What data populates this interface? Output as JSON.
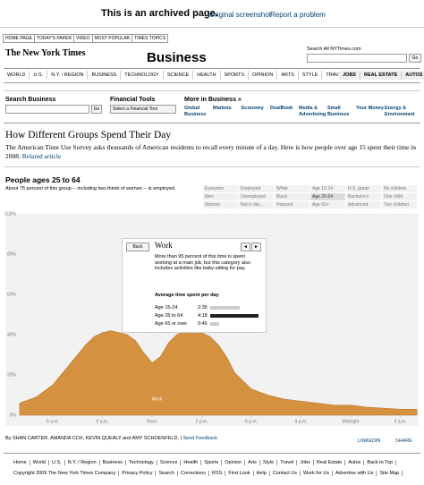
{
  "banner": {
    "text": "This is an archived page.",
    "links": [
      "Original screenshot",
      "Report a problem"
    ]
  },
  "tabs": [
    "HOME PAGE",
    "TODAY'S PAPER",
    "VIDEO",
    "MOST POPULAR",
    "TIMES TOPICS"
  ],
  "masthead": {
    "logo": "The New York Times",
    "section": "Business",
    "search_label": "Search All NYTimes.com",
    "search_button": "Go"
  },
  "nav": [
    "WORLD",
    "U.S.",
    "N.Y. / REGION",
    "BUSINESS",
    "TECHNOLOGY",
    "SCIENCE",
    "HEALTH",
    "SPORTS",
    "OPINION",
    "ARTS",
    "STYLE",
    "TRAVEL"
  ],
  "nav_right": [
    "JOBS",
    "REAL ESTATE",
    "AUTOS"
  ],
  "toolbar": {
    "search_label": "Search Business",
    "search_button": "Go",
    "tools_label": "Financial Tools",
    "tools_select": "Select a Financial Tool",
    "more_label": "More in Business »",
    "more_links": [
      "Global Business",
      "Markets",
      "Economy",
      "DealBook",
      "Media & Advertising",
      "Small Business",
      "Your Money",
      "Energy & Environment"
    ]
  },
  "article": {
    "title": "How Different Groups Spend Their Day",
    "intro": "The American Time Use Survey asks thousands of American residents to recall every minute of a day. Here is how people over age 15 spent their time in 2008.",
    "related": "Related article"
  },
  "graphic": {
    "heading": "People ages 25 to 64",
    "description": "About 75 percent of this group -- including two-thirds of women -- is employed.",
    "filters": [
      [
        "Everyone",
        "Employed",
        "White",
        "Age 15-24",
        "H.S. grade",
        "No children"
      ],
      [
        "Men",
        "Unemployed",
        "Black",
        "Age 25-64",
        "Bachelor's",
        "One child"
      ],
      [
        "Women",
        "Not in lab...",
        "Hispanic",
        "Age 65+",
        "Advanced",
        "Two children"
      ]
    ]
  },
  "chart_data": {
    "type": "area",
    "x": [
      4,
      5,
      6,
      7,
      7.5,
      8,
      8.5,
      9,
      9.5,
      10,
      10.5,
      11,
      11.5,
      12,
      12.5,
      13,
      13.5,
      14,
      14.5,
      15,
      15.5,
      16,
      16.5,
      17,
      18,
      19,
      20,
      21,
      22,
      23,
      24,
      25,
      26,
      27,
      28
    ],
    "series": [
      {
        "name": "Work",
        "color": "#d4913f",
        "values": [
          6,
          9,
          15,
          25,
          30,
          35,
          39,
          41,
          42,
          41,
          40,
          37,
          31,
          26,
          29,
          36,
          40,
          42,
          42,
          41,
          39,
          35,
          29,
          21,
          13,
          10,
          8,
          7,
          6,
          5,
          5,
          4,
          3.5,
          3,
          3
        ]
      }
    ],
    "xlim": [
      4,
      28
    ],
    "xticks": [
      {
        "value": 6,
        "label": "6 a.m."
      },
      {
        "value": 9,
        "label": "9 a.m."
      },
      {
        "value": 12,
        "label": "Noon"
      },
      {
        "value": 15,
        "label": "3 p.m."
      },
      {
        "value": 18,
        "label": "6 p.m."
      },
      {
        "value": 21,
        "label": "9 p.m."
      },
      {
        "value": 24,
        "label": "Midnight"
      },
      {
        "value": 27,
        "label": "3 a.m."
      }
    ],
    "ylim": [
      0,
      100
    ],
    "yticks": [
      {
        "value": 0,
        "label": "0%"
      },
      {
        "value": 20,
        "label": "20%"
      },
      {
        "value": 40,
        "label": "40%"
      },
      {
        "value": 60,
        "label": "60%"
      },
      {
        "value": 80,
        "label": "80%"
      },
      {
        "value": 100,
        "label": "100%"
      }
    ],
    "grid": true
  },
  "detail": {
    "back": "Back",
    "title": "Work",
    "text": "More than 95 percent of this time is spent working at a main job, but this category also includes activities like baby-sitting for pay.",
    "subheading": "Average time spent per day",
    "rows": [
      {
        "label": "Age 15-24",
        "value": 155,
        "value_label": "2:35"
      },
      {
        "label": "Age 25 to 64",
        "value": 258,
        "value_label": "4:18"
      },
      {
        "label": "Age 65 or over",
        "value": 46,
        "value_label": "0:46"
      }
    ]
  },
  "byline": "By SHAN CARTER, AMANDA COX, KEVIN QUEALY and AMY SCHOENFELD.",
  "feedback": "Send Feedback",
  "share": [
    "LINKEDIN",
    "SHARE"
  ],
  "footer": {
    "links": [
      "Home",
      "World",
      "U.S.",
      "N.Y. / Region",
      "Business",
      "Technology",
      "Science",
      "Health",
      "Sports",
      "Opinion",
      "Arts",
      "Style",
      "Travel",
      "Jobs",
      "Real Estate",
      "Autos",
      "Back to Top"
    ],
    "copyright": "Copyright 2009 The New York Times Company",
    "links2": [
      "Privacy Policy",
      "Search",
      "Corrections",
      "RSS",
      "First Look",
      "Help",
      "Contact Us",
      "Work for Us",
      "Advertise with Us",
      "Site Map"
    ]
  }
}
